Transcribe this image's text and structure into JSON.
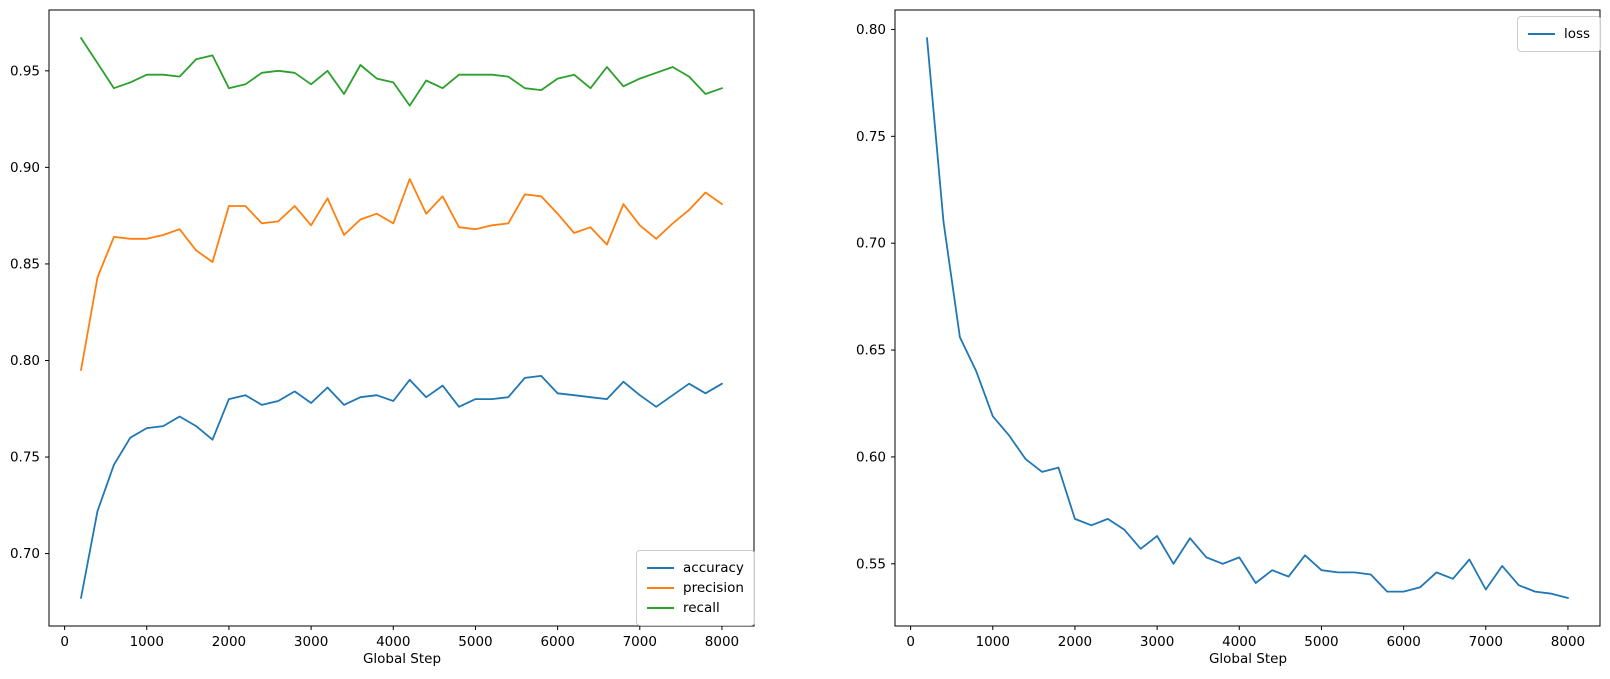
{
  "figure": {
    "background": "#ffffff"
  },
  "chart_data": [
    {
      "type": "line",
      "title": "",
      "xlabel": "Global Step",
      "ylabel": "",
      "grid": false,
      "legend_position": "lower right",
      "xlim": [
        -190,
        8390
      ],
      "ylim": [
        0.6625,
        0.9815
      ],
      "xticks": [
        0,
        1000,
        2000,
        3000,
        4000,
        5000,
        6000,
        7000,
        8000
      ],
      "xtick_labels": [
        "0",
        "1000",
        "2000",
        "3000",
        "4000",
        "5000",
        "6000",
        "7000",
        "8000"
      ],
      "yticks": [
        0.7,
        0.75,
        0.8,
        0.85,
        0.9,
        0.95
      ],
      "ytick_labels": [
        "0.70",
        "0.75",
        "0.80",
        "0.85",
        "0.90",
        "0.95"
      ],
      "x": [
        200,
        400,
        600,
        800,
        1000,
        1200,
        1400,
        1600,
        1800,
        2000,
        2200,
        2400,
        2600,
        2800,
        3000,
        3200,
        3400,
        3600,
        3800,
        4000,
        4200,
        4400,
        4600,
        4800,
        5000,
        5200,
        5400,
        5600,
        5800,
        6000,
        6200,
        6400,
        6600,
        6800,
        7000,
        7200,
        7400,
        7600,
        7800,
        8000
      ],
      "series": [
        {
          "name": "accuracy",
          "color": "#1f77b4",
          "values": [
            0.677,
            0.722,
            0.746,
            0.76,
            0.765,
            0.766,
            0.771,
            0.766,
            0.759,
            0.78,
            0.782,
            0.777,
            0.779,
            0.784,
            0.778,
            0.786,
            0.777,
            0.781,
            0.782,
            0.779,
            0.79,
            0.781,
            0.787,
            0.776,
            0.78,
            0.78,
            0.781,
            0.791,
            0.792,
            0.783,
            0.782,
            0.781,
            0.78,
            0.789,
            0.782,
            0.776,
            0.782,
            0.788,
            0.783,
            0.788
          ]
        },
        {
          "name": "precision",
          "color": "#ff7f0e",
          "values": [
            0.795,
            0.843,
            0.864,
            0.863,
            0.863,
            0.865,
            0.868,
            0.857,
            0.851,
            0.88,
            0.88,
            0.871,
            0.872,
            0.88,
            0.87,
            0.884,
            0.865,
            0.873,
            0.876,
            0.871,
            0.894,
            0.876,
            0.885,
            0.869,
            0.868,
            0.87,
            0.871,
            0.886,
            0.885,
            0.876,
            0.866,
            0.869,
            0.86,
            0.881,
            0.87,
            0.863,
            0.871,
            0.878,
            0.887,
            0.881
          ]
        },
        {
          "name": "recall",
          "color": "#2ca02c",
          "values": [
            0.967,
            0.954,
            0.941,
            0.944,
            0.948,
            0.948,
            0.947,
            0.956,
            0.958,
            0.941,
            0.943,
            0.949,
            0.95,
            0.949,
            0.943,
            0.95,
            0.938,
            0.953,
            0.946,
            0.944,
            0.932,
            0.945,
            0.941,
            0.948,
            0.948,
            0.948,
            0.947,
            0.941,
            0.94,
            0.946,
            0.948,
            0.941,
            0.952,
            0.942,
            0.946,
            0.949,
            0.952,
            0.947,
            0.938,
            0.941
          ]
        }
      ]
    },
    {
      "type": "line",
      "title": "",
      "xlabel": "Global Step",
      "ylabel": "",
      "grid": false,
      "legend_position": "upper right",
      "xlim": [
        -190,
        8390
      ],
      "ylim": [
        0.5209,
        0.8091
      ],
      "xticks": [
        0,
        1000,
        2000,
        3000,
        4000,
        5000,
        6000,
        7000,
        8000
      ],
      "xtick_labels": [
        "0",
        "1000",
        "2000",
        "3000",
        "4000",
        "5000",
        "6000",
        "7000",
        "8000"
      ],
      "yticks": [
        0.55,
        0.6,
        0.65,
        0.7,
        0.75,
        0.8
      ],
      "ytick_labels": [
        "0.55",
        "0.60",
        "0.65",
        "0.70",
        "0.75",
        "0.80"
      ],
      "x": [
        200,
        400,
        600,
        800,
        1000,
        1200,
        1400,
        1600,
        1800,
        2000,
        2200,
        2400,
        2600,
        2800,
        3000,
        3200,
        3400,
        3600,
        3800,
        4000,
        4200,
        4400,
        4600,
        4800,
        5000,
        5200,
        5400,
        5600,
        5800,
        6000,
        6200,
        6400,
        6600,
        6800,
        7000,
        7200,
        7400,
        7600,
        7800,
        8000
      ],
      "series": [
        {
          "name": "loss",
          "color": "#1f77b4",
          "values": [
            0.796,
            0.71,
            0.656,
            0.64,
            0.619,
            0.61,
            0.599,
            0.593,
            0.595,
            0.571,
            0.568,
            0.571,
            0.566,
            0.557,
            0.563,
            0.55,
            0.562,
            0.553,
            0.55,
            0.553,
            0.541,
            0.547,
            0.544,
            0.554,
            0.547,
            0.546,
            0.546,
            0.545,
            0.537,
            0.537,
            0.539,
            0.546,
            0.543,
            0.552,
            0.538,
            0.549,
            0.54,
            0.537,
            0.536,
            0.534
          ]
        }
      ]
    }
  ]
}
